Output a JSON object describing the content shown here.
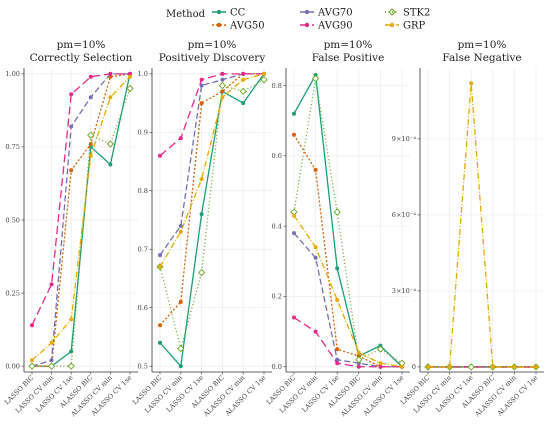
{
  "legend": {
    "title": "Method",
    "entries": [
      "CC",
      "AVG50",
      "AVG70",
      "AVG90",
      "STK2",
      "GRP"
    ]
  },
  "series_colors": {
    "CC": "#1b9e77",
    "AVG50": "#d95f02",
    "AVG70": "#7570b3",
    "AVG90": "#e7298a",
    "STK2": "#66a61e",
    "GRP": "#e6ab02"
  },
  "chart_data": [
    {
      "type": "line",
      "title": "pm=10%",
      "subtitle": "Correctly Selection",
      "categories": [
        "LASSO BIC",
        "LASSO CV min",
        "LASSO CV 1se",
        "ALASSO BIC",
        "ALASSO CV min",
        "ALASSO CV 1se"
      ],
      "ylim": [
        -0.02,
        1.02
      ],
      "yticks": [
        0.0,
        0.25,
        0.5,
        0.75,
        1.0
      ],
      "ytick_labels": [
        "0.00",
        "0.25",
        "0.50",
        "0.75",
        "1.00"
      ],
      "series": [
        {
          "name": "CC",
          "values": [
            0.0,
            0.0,
            0.05,
            0.75,
            0.69,
            1.0
          ]
        },
        {
          "name": "AVG50",
          "values": [
            0.0,
            0.0,
            0.67,
            0.76,
            0.99,
            1.0
          ]
        },
        {
          "name": "AVG70",
          "values": [
            0.0,
            0.02,
            0.82,
            0.92,
            1.0,
            1.0
          ]
        },
        {
          "name": "AVG90",
          "values": [
            0.14,
            0.28,
            0.93,
            0.99,
            1.0,
            1.0
          ]
        },
        {
          "name": "STK2",
          "values": [
            0.0,
            0.0,
            0.0,
            0.79,
            0.76,
            0.95
          ]
        },
        {
          "name": "GRP",
          "values": [
            0.02,
            0.08,
            0.16,
            0.72,
            0.92,
            0.99
          ]
        }
      ]
    },
    {
      "type": "line",
      "title": "pm=10%",
      "subtitle": "Positively Discovery",
      "categories": [
        "LASSO BIC",
        "LASSO CV min",
        "LASSO CV 1se",
        "ALASSO BIC",
        "ALASSO CV min",
        "ALASSO CV 1se"
      ],
      "ylim": [
        0.49,
        1.01
      ],
      "yticks": [
        0.5,
        0.6,
        0.7,
        0.8,
        0.9,
        1.0
      ],
      "ytick_labels": [
        "0.5",
        "0.6",
        "0.7",
        "0.8",
        "0.9",
        "1.0"
      ],
      "series": [
        {
          "name": "CC",
          "values": [
            0.54,
            0.5,
            0.76,
            0.97,
            0.95,
            1.0
          ]
        },
        {
          "name": "AVG50",
          "values": [
            0.57,
            0.61,
            0.95,
            0.97,
            1.0,
            1.0
          ]
        },
        {
          "name": "AVG70",
          "values": [
            0.69,
            0.74,
            0.98,
            0.99,
            1.0,
            1.0
          ]
        },
        {
          "name": "AVG90",
          "values": [
            0.86,
            0.89,
            0.99,
            1.0,
            1.0,
            1.0
          ]
        },
        {
          "name": "STK2",
          "values": [
            0.67,
            0.53,
            0.66,
            0.98,
            0.97,
            0.99
          ]
        },
        {
          "name": "GRP",
          "values": [
            0.67,
            0.73,
            0.82,
            0.96,
            0.99,
            1.0
          ]
        }
      ]
    },
    {
      "type": "line",
      "title": "pm=10%",
      "subtitle": "False Positive",
      "categories": [
        "LASSO BIC",
        "LASSO CV min",
        "LASSO CV 1se",
        "ALASSO BIC",
        "ALASSO CV min",
        "ALASSO CV 1se"
      ],
      "ylim": [
        -0.015,
        0.85
      ],
      "yticks": [
        0.0,
        0.2,
        0.4,
        0.6,
        0.8
      ],
      "ytick_labels": [
        "0.0",
        "0.2",
        "0.4",
        "0.6",
        "0.8"
      ],
      "series": [
        {
          "name": "CC",
          "values": [
            0.72,
            0.83,
            0.28,
            0.03,
            0.06,
            0.0
          ]
        },
        {
          "name": "AVG50",
          "values": [
            0.66,
            0.56,
            0.05,
            0.03,
            0.0,
            0.0
          ]
        },
        {
          "name": "AVG70",
          "values": [
            0.38,
            0.31,
            0.02,
            0.01,
            0.0,
            0.0
          ]
        },
        {
          "name": "AVG90",
          "values": [
            0.14,
            0.1,
            0.01,
            0.0,
            0.0,
            0.0
          ]
        },
        {
          "name": "STK2",
          "values": [
            0.44,
            0.82,
            0.44,
            0.02,
            0.05,
            0.01
          ]
        },
        {
          "name": "GRP",
          "values": [
            0.43,
            0.34,
            0.19,
            0.04,
            0.01,
            0.0
          ]
        }
      ]
    },
    {
      "type": "line",
      "title": "pm=10%",
      "subtitle": "False Negative",
      "categories": [
        "LASSO BIC",
        "LASSO CV min",
        "LASSO CV 1se",
        "ALASSO BIC",
        "ALASSO CV min",
        "ALASSO CV 1se"
      ],
      "ylim": [
        -2e-05,
        0.00118
      ],
      "yticks": [
        0.0,
        0.0003,
        0.0006,
        0.0009
      ],
      "ytick_labels": [
        "0",
        "3×10⁻⁴",
        "6×10⁻⁴",
        "9×10⁻⁴"
      ],
      "series": [
        {
          "name": "CC",
          "values": [
            0,
            0,
            0,
            0,
            0,
            0
          ]
        },
        {
          "name": "AVG50",
          "values": [
            0,
            0,
            0,
            0,
            0,
            0
          ]
        },
        {
          "name": "AVG70",
          "values": [
            0,
            0,
            0,
            0,
            0,
            0
          ]
        },
        {
          "name": "AVG90",
          "values": [
            0,
            0,
            0,
            0,
            0,
            0
          ]
        },
        {
          "name": "STK2",
          "values": [
            0,
            0,
            0,
            0,
            0,
            0
          ]
        },
        {
          "name": "GRP",
          "values": [
            0,
            0,
            0.00112,
            0,
            0,
            0
          ]
        }
      ]
    }
  ]
}
